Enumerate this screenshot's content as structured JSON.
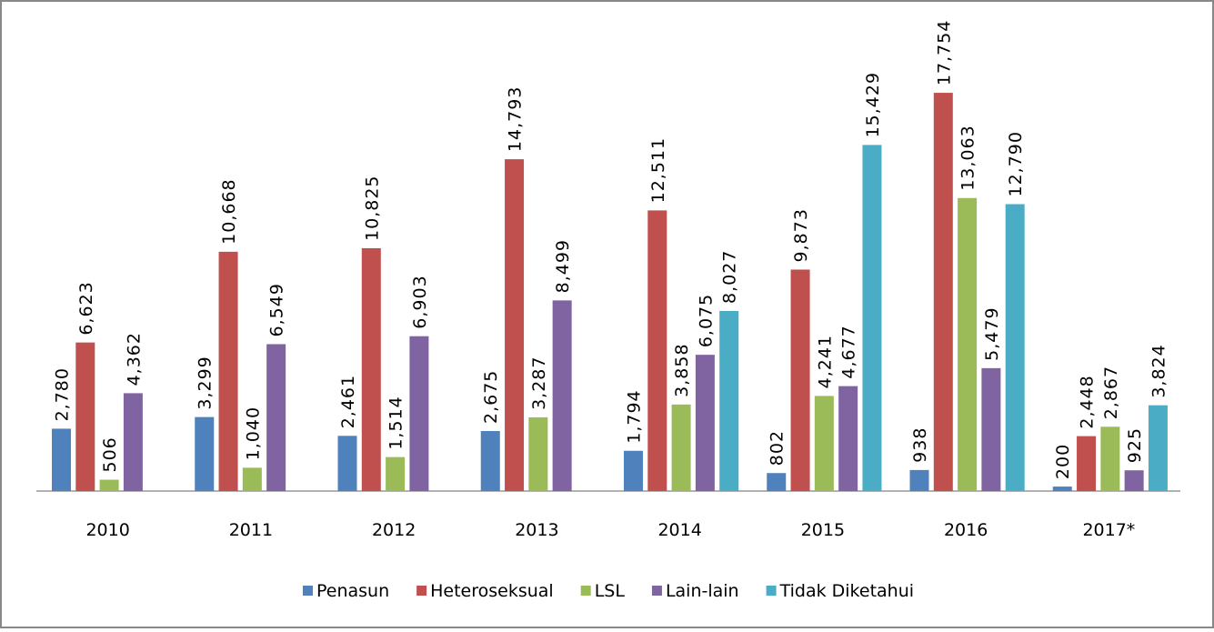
{
  "chart_data": {
    "type": "bar",
    "categories": [
      "2010",
      "2011",
      "2012",
      "2013",
      "2014",
      "2015",
      "2016",
      "2017*"
    ],
    "series": [
      {
        "name": "Penasun",
        "color": "#4f81bd",
        "values": [
          2780,
          3299,
          2461,
          2675,
          1794,
          802,
          938,
          200
        ],
        "value_labels": [
          "2,780",
          "3,299",
          "2,461",
          "2,675",
          "1,794",
          "802",
          "938",
          "200"
        ]
      },
      {
        "name": "Heteroseksual",
        "color": "#c0504d",
        "values": [
          6623,
          10668,
          10825,
          14793,
          12511,
          9873,
          17754,
          2448
        ],
        "value_labels": [
          "6,623",
          "10,668",
          "10,825",
          "14,793",
          "12,511",
          "9,873",
          "17,754",
          "2,448"
        ]
      },
      {
        "name": "LSL",
        "color": "#9bbb59",
        "values": [
          506,
          1040,
          1514,
          3287,
          3858,
          4241,
          13063,
          2867
        ],
        "value_labels": [
          "506",
          "1,040",
          "1,514",
          "3,287",
          "3,858",
          "4,241",
          "13,063",
          "2,867"
        ]
      },
      {
        "name": "Lain-lain",
        "color": "#8064a2",
        "values": [
          4362,
          6549,
          6903,
          8499,
          6075,
          4677,
          5479,
          925
        ],
        "value_labels": [
          "4,362",
          "6,549",
          "6,903",
          "8,499",
          "6,075",
          "4,677",
          "5,479",
          "925"
        ]
      },
      {
        "name": "Tidak Diketahui",
        "color": "#4bacc6",
        "values": [
          null,
          null,
          null,
          null,
          8027,
          15429,
          12790,
          3824
        ],
        "value_labels": [
          null,
          null,
          null,
          null,
          "8,027",
          "15,429",
          "12,790",
          "3,824"
        ]
      }
    ],
    "ylim": [
      0,
      18000
    ],
    "legend": "bottom"
  }
}
